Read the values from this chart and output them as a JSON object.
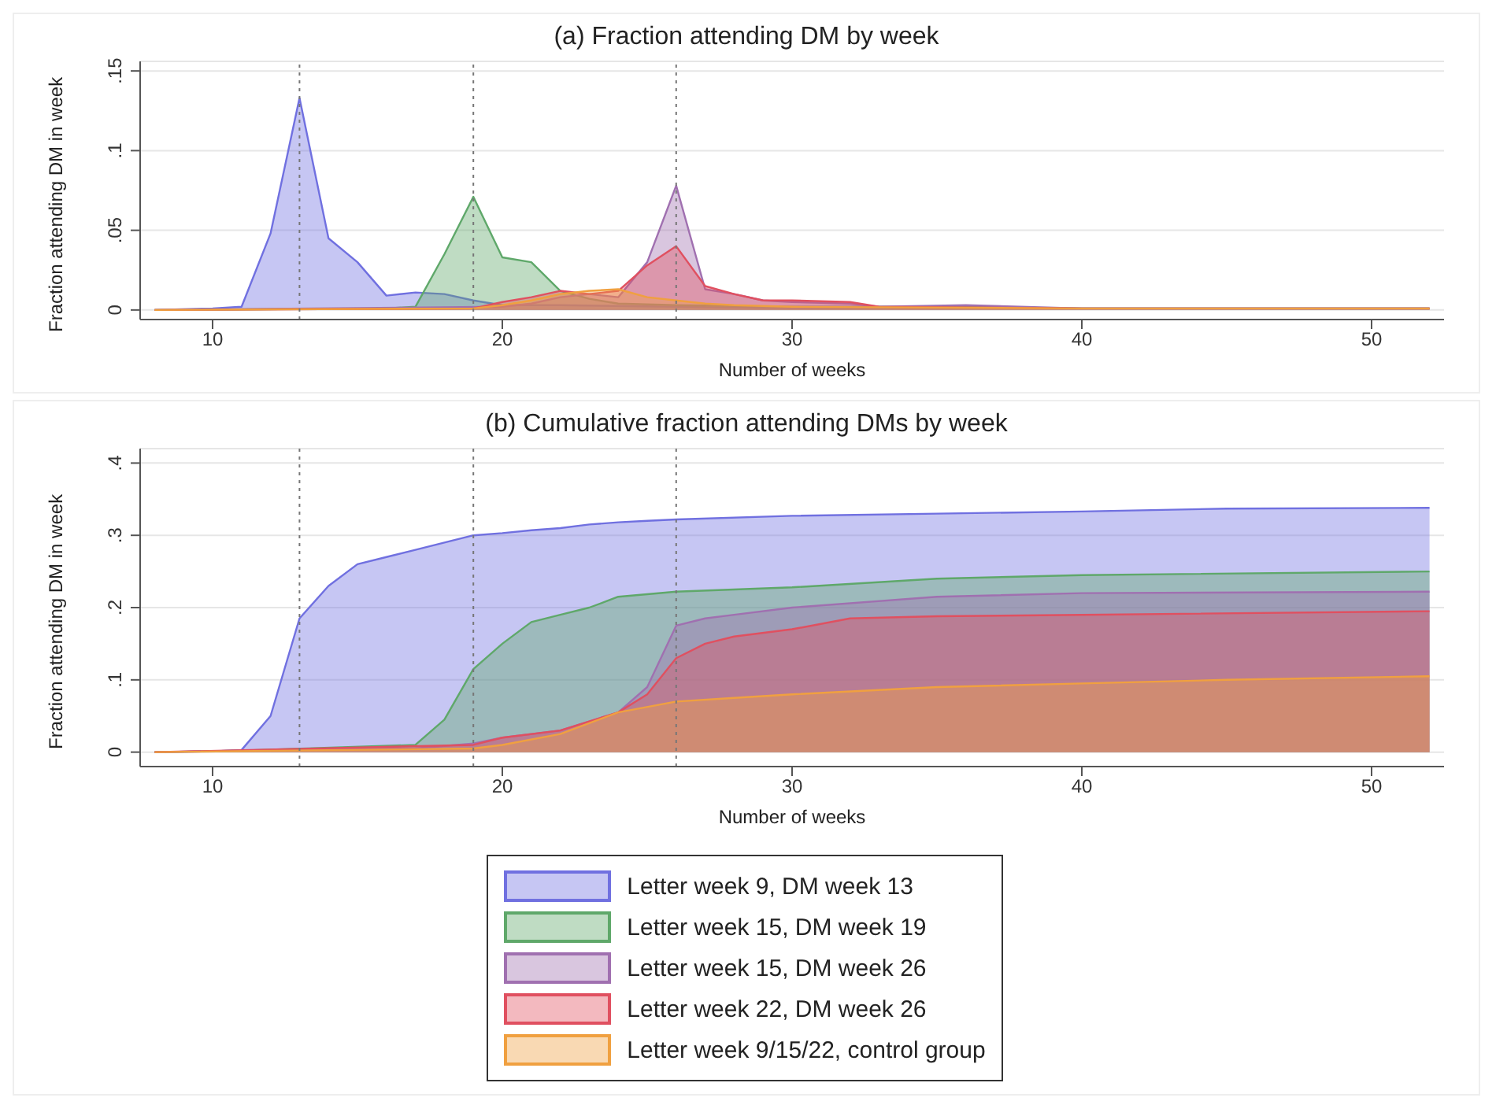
{
  "chart_data": [
    {
      "type": "area",
      "title": "(a) Fraction attending DM by week",
      "xlabel": "Number of weeks",
      "ylabel": "Fraction attending DM in week",
      "xlim": [
        7.5,
        52.5
      ],
      "xticks": [
        10,
        20,
        30,
        40,
        50
      ],
      "ylim": [
        -0.006,
        0.156
      ],
      "yticks": [
        {
          "value": 0,
          "label": "0"
        },
        {
          "value": 0.05,
          "label": ".05"
        },
        {
          "value": 0.1,
          "label": ".1"
        },
        {
          "value": 0.15,
          "label": ".15"
        }
      ],
      "grid": "y",
      "legend": false,
      "ref_lines": [
        {
          "axis": "x",
          "value": 13,
          "line_style": "dotted"
        },
        {
          "axis": "x",
          "value": 19,
          "line_style": "dotted"
        },
        {
          "axis": "x",
          "value": 26,
          "line_style": "dotted"
        }
      ],
      "series": [
        {
          "color": "#7070e0",
          "x": [
            8,
            10,
            11,
            12,
            13,
            14,
            15,
            16,
            17,
            18,
            19,
            20,
            22,
            26,
            30,
            40,
            52
          ],
          "values": [
            0,
            0.001,
            0.002,
            0.048,
            0.133,
            0.045,
            0.03,
            0.009,
            0.011,
            0.01,
            0.006,
            0.003,
            0.003,
            0.002,
            0.001,
            0.001,
            0.001
          ]
        },
        {
          "color": "#5fa86a",
          "x": [
            8,
            16,
            17,
            18,
            19,
            20,
            21,
            22,
            23,
            24,
            26,
            30,
            35,
            36,
            40,
            52
          ],
          "values": [
            0,
            0.001,
            0.002,
            0.035,
            0.071,
            0.033,
            0.03,
            0.012,
            0.007,
            0.004,
            0.003,
            0.002,
            0.002,
            0.002,
            0.001,
            0.001
          ]
        },
        {
          "color": "#a070b0",
          "x": [
            8,
            20,
            21,
            22,
            23,
            24,
            25,
            26,
            27,
            28,
            29,
            30,
            32,
            33,
            36,
            40,
            52
          ],
          "values": [
            0,
            0.002,
            0.004,
            0.008,
            0.01,
            0.008,
            0.03,
            0.078,
            0.013,
            0.01,
            0.006,
            0.005,
            0.004,
            0.002,
            0.003,
            0.001,
            0.001
          ]
        },
        {
          "color": "#e05060",
          "x": [
            8,
            19,
            20,
            21,
            22,
            23,
            24,
            25,
            26,
            27,
            28,
            29,
            30,
            32,
            33,
            40,
            52
          ],
          "values": [
            0,
            0.001,
            0.005,
            0.008,
            0.012,
            0.01,
            0.012,
            0.028,
            0.04,
            0.015,
            0.01,
            0.006,
            0.006,
            0.005,
            0.002,
            0.001,
            0.001
          ]
        },
        {
          "color": "#f0a040",
          "x": [
            8,
            19,
            20,
            21,
            22,
            23,
            24,
            25,
            26,
            27,
            28,
            30,
            40,
            52
          ],
          "values": [
            0,
            0.001,
            0.003,
            0.006,
            0.01,
            0.012,
            0.013,
            0.008,
            0.006,
            0.004,
            0.003,
            0.002,
            0.001,
            0.001
          ]
        }
      ]
    },
    {
      "type": "area",
      "title": "(b) Cumulative fraction attending DMs by week",
      "xlabel": "Number of weeks",
      "ylabel": "Fraction attending DM in week",
      "xlim": [
        7.5,
        52.5
      ],
      "xticks": [
        10,
        20,
        30,
        40,
        50
      ],
      "ylim": [
        -0.02,
        0.42
      ],
      "yticks": [
        {
          "value": 0,
          "label": "0"
        },
        {
          "value": 0.1,
          "label": ".1"
        },
        {
          "value": 0.2,
          "label": ".2"
        },
        {
          "value": 0.3,
          "label": ".3"
        },
        {
          "value": 0.4,
          "label": ".4"
        }
      ],
      "grid": "y",
      "legend": "bottom",
      "ref_lines": [
        {
          "axis": "x",
          "value": 13,
          "line_style": "dotted"
        },
        {
          "axis": "x",
          "value": 19,
          "line_style": "dotted"
        },
        {
          "axis": "x",
          "value": 26,
          "line_style": "dotted"
        }
      ],
      "series": [
        {
          "name": "Letter week 9, DM week 13",
          "color": "#7070e0",
          "x": [
            8,
            10,
            11,
            12,
            13,
            14,
            15,
            16,
            17,
            18,
            19,
            20,
            21,
            22,
            23,
            24,
            25,
            26,
            30,
            35,
            40,
            45,
            52
          ],
          "values": [
            0,
            0.001,
            0.003,
            0.05,
            0.185,
            0.23,
            0.26,
            0.27,
            0.28,
            0.29,
            0.3,
            0.303,
            0.307,
            0.31,
            0.315,
            0.318,
            0.32,
            0.322,
            0.327,
            0.33,
            0.333,
            0.337,
            0.338
          ]
        },
        {
          "name": "Letter week 15, DM week 19",
          "color": "#5fa86a",
          "x": [
            8,
            11,
            17,
            18,
            19,
            20,
            21,
            22,
            23,
            24,
            26,
            30,
            35,
            40,
            52
          ],
          "values": [
            0,
            0.002,
            0.01,
            0.045,
            0.115,
            0.15,
            0.18,
            0.19,
            0.2,
            0.215,
            0.222,
            0.228,
            0.24,
            0.245,
            0.25
          ]
        },
        {
          "name": "Letter week 15, DM week 26",
          "color": "#a070b0",
          "x": [
            8,
            17,
            19,
            20,
            22,
            24,
            25,
            26,
            27,
            28,
            30,
            35,
            40,
            52
          ],
          "values": [
            0,
            0.005,
            0.012,
            0.02,
            0.03,
            0.055,
            0.09,
            0.175,
            0.185,
            0.19,
            0.2,
            0.215,
            0.22,
            0.222
          ]
        },
        {
          "name": "Letter week 22, DM week 26",
          "color": "#e05060",
          "x": [
            8,
            19,
            20,
            22,
            24,
            25,
            26,
            27,
            28,
            30,
            32,
            35,
            40,
            52
          ],
          "values": [
            0,
            0.01,
            0.02,
            0.03,
            0.055,
            0.08,
            0.13,
            0.15,
            0.16,
            0.17,
            0.185,
            0.188,
            0.19,
            0.195
          ]
        },
        {
          "name": "Letter week 9/15/22, control group",
          "color": "#f0a040",
          "x": [
            8,
            19,
            20,
            22,
            24,
            26,
            28,
            30,
            35,
            40,
            45,
            52
          ],
          "values": [
            0,
            0.005,
            0.01,
            0.025,
            0.055,
            0.07,
            0.075,
            0.08,
            0.09,
            0.095,
            0.1,
            0.105
          ]
        }
      ]
    }
  ]
}
